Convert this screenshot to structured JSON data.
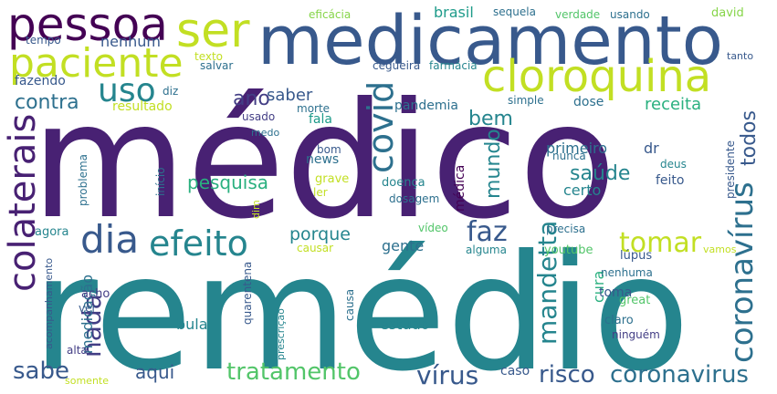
{
  "colors": {
    "c1": "#440154",
    "c2": "#482173",
    "c3": "#433e85",
    "c4": "#38598c",
    "c5": "#2d708e",
    "c6": "#25858e",
    "c7": "#1e9b8a",
    "c8": "#2ab07f",
    "c9": "#52c569",
    "c10": "#86d549",
    "c11": "#c2df23",
    "c12": "#fde725"
  },
  "words": [
    {
      "text": "médico",
      "color": "c2"
    },
    {
      "text": "remédio",
      "color": "c6"
    },
    {
      "text": "medicamento",
      "color": "c4"
    },
    {
      "text": "pessoa",
      "color": "c1"
    },
    {
      "text": "ser",
      "color": "c11"
    },
    {
      "text": "paciente",
      "color": "c11"
    },
    {
      "text": "cloroquina",
      "color": "c11"
    },
    {
      "text": "colaterais",
      "color": "c2"
    },
    {
      "text": "efeito",
      "color": "c6"
    },
    {
      "text": "dia",
      "color": "c4"
    },
    {
      "text": "uso",
      "color": "c6"
    },
    {
      "text": "covid",
      "color": "c5"
    },
    {
      "text": "coronavírus",
      "color": "c5"
    },
    {
      "text": "tomar",
      "color": "c11"
    },
    {
      "text": "nada",
      "color": "c3"
    },
    {
      "text": "sabe",
      "color": "c4"
    },
    {
      "text": "tratamento",
      "color": "c9"
    },
    {
      "text": "vírus",
      "color": "c4"
    },
    {
      "text": "risco",
      "color": "c4"
    },
    {
      "text": "coronavirus",
      "color": "c5"
    },
    {
      "text": "mandetta",
      "color": "c6"
    },
    {
      "text": "faz",
      "color": "c4"
    },
    {
      "text": "bem",
      "color": "c6"
    },
    {
      "text": "ano",
      "color": "c3"
    },
    {
      "text": "contra",
      "color": "c5"
    },
    {
      "text": "saber",
      "color": "c4"
    },
    {
      "text": "porque",
      "color": "c6"
    },
    {
      "text": "mundo",
      "color": "c6"
    },
    {
      "text": "saúde",
      "color": "c6"
    },
    {
      "text": "todos",
      "color": "c4"
    },
    {
      "text": "pesquisa",
      "color": "c8"
    },
    {
      "text": "receita",
      "color": "c8"
    },
    {
      "text": "aqui",
      "color": "c4"
    },
    {
      "text": "medicação",
      "color": "c5"
    },
    {
      "text": "gente",
      "color": "c5"
    },
    {
      "text": "estudo",
      "color": "c6"
    },
    {
      "text": "cura",
      "color": "c8"
    },
    {
      "text": "primeiro",
      "color": "c5"
    },
    {
      "text": "certo",
      "color": "c6"
    },
    {
      "text": "dr",
      "color": "c4"
    },
    {
      "text": "toma",
      "color": "c4"
    },
    {
      "text": "bula",
      "color": "c6"
    },
    {
      "text": "fala",
      "color": "c7"
    },
    {
      "text": "nenhum",
      "color": "c4"
    },
    {
      "text": "brasil",
      "color": "c7"
    },
    {
      "text": "fazendo",
      "color": "c4"
    },
    {
      "text": "resultado",
      "color": "c11"
    },
    {
      "text": "pandemia",
      "color": "c5"
    },
    {
      "text": "news",
      "color": "c5"
    },
    {
      "text": "médica",
      "color": "c1"
    },
    {
      "text": "presidente",
      "color": "c4"
    },
    {
      "text": "eficácia",
      "color": "c10"
    },
    {
      "text": "sequela",
      "color": "c5"
    },
    {
      "text": "verdade",
      "color": "c9"
    },
    {
      "text": "usando",
      "color": "c5"
    },
    {
      "text": "david",
      "color": "c10"
    },
    {
      "text": "tempo",
      "color": "c4"
    },
    {
      "text": "texto",
      "color": "c11"
    },
    {
      "text": "salvar",
      "color": "c5"
    },
    {
      "text": "cegueira",
      "color": "c4"
    },
    {
      "text": "farmácia",
      "color": "c6"
    },
    {
      "text": "tanto",
      "color": "c4"
    },
    {
      "text": "diz",
      "color": "c5"
    },
    {
      "text": "usado",
      "color": "c3"
    },
    {
      "text": "morte",
      "color": "c5"
    },
    {
      "text": "simple",
      "color": "c5"
    },
    {
      "text": "dose",
      "color": "c5"
    },
    {
      "text": "medo",
      "color": "c5"
    },
    {
      "text": "bom",
      "color": "c4"
    },
    {
      "text": "nunca",
      "color": "c5"
    },
    {
      "text": "deus",
      "color": "c6"
    },
    {
      "text": "grave",
      "color": "c11"
    },
    {
      "text": "ler",
      "color": "c11"
    },
    {
      "text": "doença",
      "color": "c6"
    },
    {
      "text": "dosagem",
      "color": "c5"
    },
    {
      "text": "feito",
      "color": "c4"
    },
    {
      "text": "problema",
      "color": "c5"
    },
    {
      "text": "início",
      "color": "c5"
    },
    {
      "text": "dim",
      "color": "c11"
    },
    {
      "text": "vídeo",
      "color": "c9"
    },
    {
      "text": "precisa",
      "color": "c5"
    },
    {
      "text": "agora",
      "color": "c6"
    },
    {
      "text": "causar",
      "color": "c11"
    },
    {
      "text": "alguma",
      "color": "c6"
    },
    {
      "text": "youtube",
      "color": "c9"
    },
    {
      "text": "vamos",
      "color": "c11"
    },
    {
      "text": "lúpus",
      "color": "c4"
    },
    {
      "text": "acompanhamento",
      "color": "c4"
    },
    {
      "text": "nenhuma",
      "color": "c5"
    },
    {
      "text": "acho",
      "color": "c3"
    },
    {
      "text": "quarentena",
      "color": "c4"
    },
    {
      "text": "prescrição",
      "color": "c6"
    },
    {
      "text": "causa",
      "color": "c5"
    },
    {
      "text": "great",
      "color": "c9"
    },
    {
      "text": "ver",
      "color": "c4"
    },
    {
      "text": "claro",
      "color": "c5"
    },
    {
      "text": "ninguém",
      "color": "c3"
    },
    {
      "text": "alta",
      "color": "c3"
    },
    {
      "text": "somente",
      "color": "c11"
    },
    {
      "text": "caso",
      "color": "c4"
    }
  ]
}
